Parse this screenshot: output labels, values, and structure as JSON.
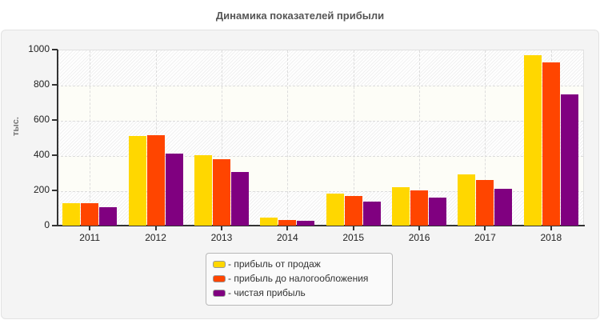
{
  "title": "Динамика показателей прибыли",
  "chart_data": {
    "type": "bar",
    "title": "Динамика показателей прибыли",
    "xlabel": "",
    "ylabel": "тыс.",
    "ylim": [
      0,
      1000
    ],
    "yticks": [
      0,
      200,
      400,
      600,
      800,
      1000
    ],
    "grid": true,
    "legend_position": "bottom",
    "categories": [
      "2011",
      "2012",
      "2013",
      "2014",
      "2015",
      "2016",
      "2017",
      "2018"
    ],
    "series": [
      {
        "name": "- прибыль от продаж",
        "color": "#FFD700",
        "values": [
          127,
          510,
          398,
          47,
          183,
          220,
          292,
          970
        ]
      },
      {
        "name": "- прибыль до налогообложения",
        "color": "#FF4500",
        "values": [
          127,
          515,
          378,
          33,
          170,
          201,
          260,
          929
        ]
      },
      {
        "name": "- чистая прибыль",
        "color": "#800080",
        "values": [
          105,
          410,
          306,
          29,
          138,
          160,
          210,
          747
        ]
      }
    ]
  }
}
